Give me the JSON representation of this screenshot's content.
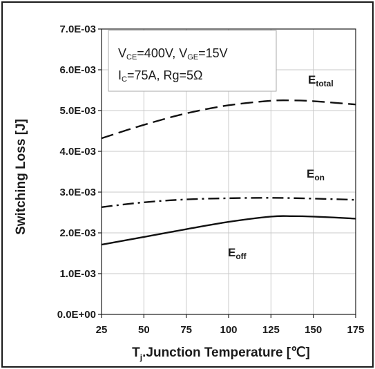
{
  "chart_data": {
    "type": "line",
    "xlabel": {
      "main": "T",
      "sub": "j",
      "rest": ".Junction Temperature [℃]"
    },
    "ylabel": "Switching Loss [J]",
    "xlim": [
      25,
      175
    ],
    "ylim": [
      0,
      0.007
    ],
    "x_ticks": [
      25,
      50,
      75,
      100,
      125,
      150,
      175
    ],
    "x_tick_labels": [
      "25",
      "50",
      "75",
      "100",
      "125",
      "150",
      "175"
    ],
    "y_ticks": [
      0,
      0.001,
      0.002,
      0.003,
      0.004,
      0.005,
      0.006,
      0.007
    ],
    "y_tick_labels": [
      "0.0E+00",
      "1.0E-03",
      "2.0E-03",
      "3.0E-03",
      "4.0E-03",
      "5.0E-03",
      "6.0E-03",
      "7.0E-03"
    ],
    "grid": true,
    "annotation": {
      "line1": {
        "a": "V",
        "a_sub": "CE",
        "b": "=400V, V",
        "b_sub": "GE",
        "c": "=15V"
      },
      "line2": {
        "a": "I",
        "a_sub": "C",
        "b": "=75A, Rg=5Ω"
      }
    },
    "series": [
      {
        "name": "E_total",
        "label_main": "E",
        "label_sub": "total",
        "style": "dashed",
        "x": [
          25,
          50,
          75,
          100,
          125,
          137.5,
          150,
          175
        ],
        "y": [
          0.00432,
          0.00465,
          0.00493,
          0.00513,
          0.00524,
          0.00525,
          0.00523,
          0.00515
        ]
      },
      {
        "name": "E_on",
        "label_main": "E",
        "label_sub": "on",
        "style": "dashdot",
        "x": [
          25,
          50,
          75,
          100,
          125,
          150,
          175
        ],
        "y": [
          0.00263,
          0.00275,
          0.00282,
          0.00285,
          0.00286,
          0.00284,
          0.00281
        ]
      },
      {
        "name": "E_off",
        "label_main": "E",
        "label_sub": "off",
        "style": "solid",
        "x": [
          25,
          50,
          75,
          100,
          125,
          137.5,
          150,
          175
        ],
        "y": [
          0.00171,
          0.0019,
          0.00209,
          0.00227,
          0.0024,
          0.00241,
          0.0024,
          0.00235
        ]
      }
    ],
    "colors": {
      "line": "#111111",
      "grid": "#c8c8c8",
      "frame": "#1a1a1a"
    }
  }
}
